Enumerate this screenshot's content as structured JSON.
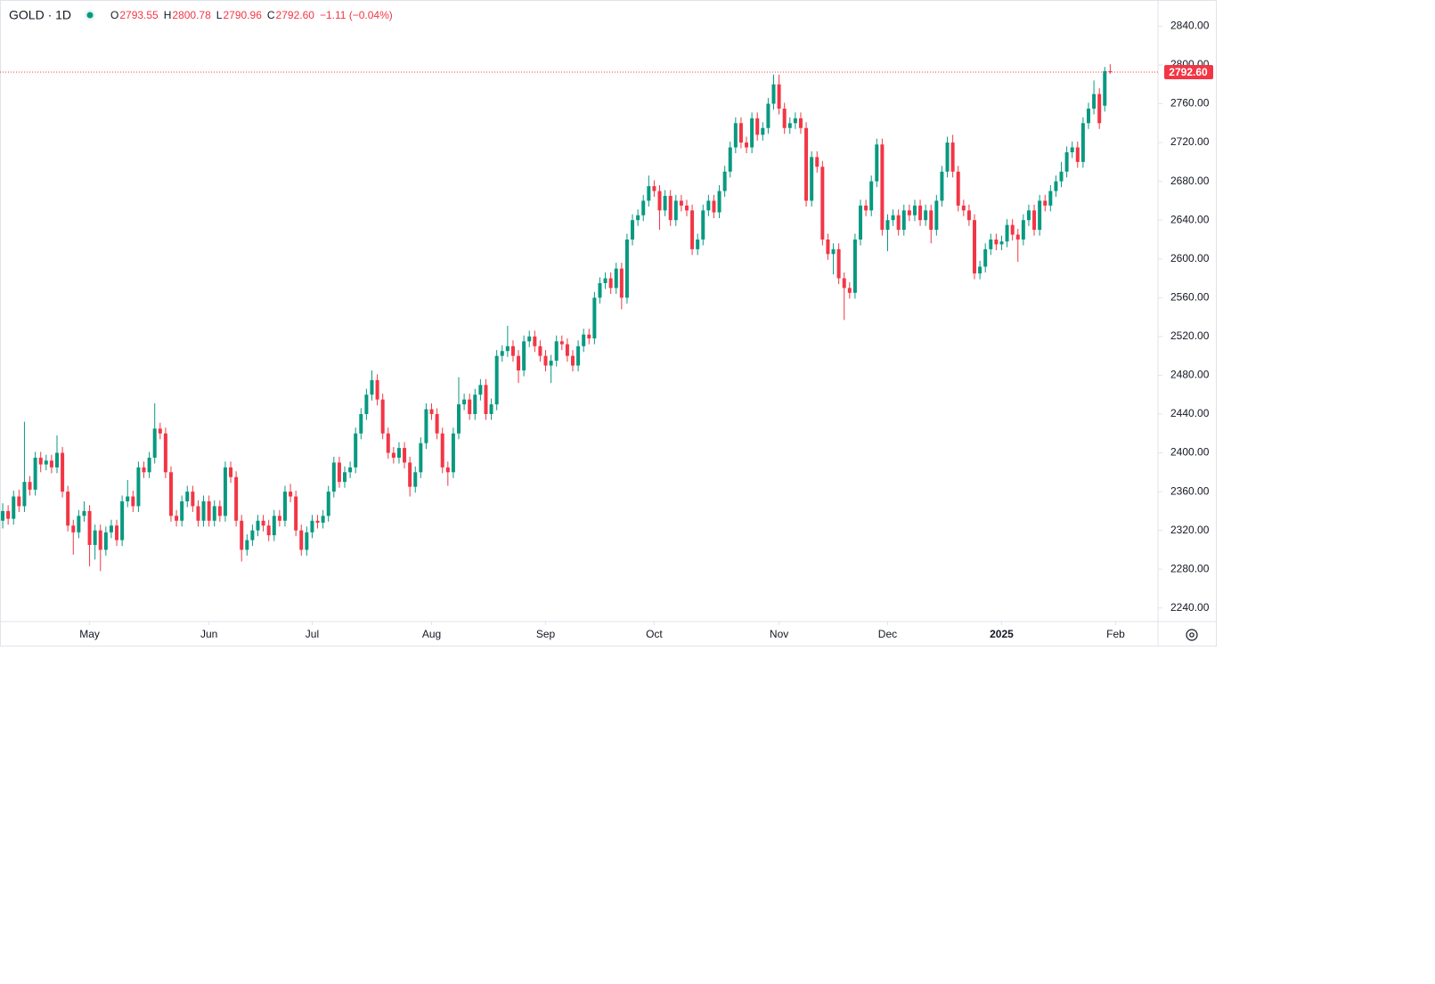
{
  "chart_data": {
    "type": "candlestick",
    "header": {
      "symbol": "GOLD · 1D",
      "open_key": "O",
      "open": "2793.55",
      "high_key": "H",
      "high": "2800.78",
      "low_key": "L",
      "low": "2790.96",
      "close_key": "C",
      "close": "2792.60",
      "change": "−1.11 (−0.04%)"
    },
    "up_color": "#089981",
    "down_color": "#f23645",
    "last_price": {
      "value": 2792.6,
      "label": "2792.60"
    },
    "ylim": [
      2226,
      2867
    ],
    "yticks": [
      {
        "value": 2240,
        "label": "2240.00"
      },
      {
        "value": 2280,
        "label": "2280.00"
      },
      {
        "value": 2320,
        "label": "2320.00"
      },
      {
        "value": 2360,
        "label": "2360.00"
      },
      {
        "value": 2400,
        "label": "2400.00"
      },
      {
        "value": 2440,
        "label": "2440.00"
      },
      {
        "value": 2480,
        "label": "2480.00"
      },
      {
        "value": 2520,
        "label": "2520.00"
      },
      {
        "value": 2560,
        "label": "2560.00"
      },
      {
        "value": 2600,
        "label": "2600.00"
      },
      {
        "value": 2640,
        "label": "2640.00"
      },
      {
        "value": 2680,
        "label": "2680.00"
      },
      {
        "value": 2720,
        "label": "2720.00"
      },
      {
        "value": 2760,
        "label": "2760.00"
      },
      {
        "value": 2800,
        "label": "2800.00"
      },
      {
        "value": 2840,
        "label": "2840.00"
      }
    ],
    "xlim": [
      -0.5,
      212.8
    ],
    "xticks": [
      {
        "value": 16,
        "label": "May"
      },
      {
        "value": 38,
        "label": "Jun"
      },
      {
        "value": 57,
        "label": "Jul"
      },
      {
        "value": 79,
        "label": "Aug"
      },
      {
        "value": 100,
        "label": "Sep"
      },
      {
        "value": 120,
        "label": "Oct"
      },
      {
        "value": 143,
        "label": "Nov"
      },
      {
        "value": 163,
        "label": "Dec"
      },
      {
        "value": 184,
        "label": "2025"
      },
      {
        "value": 205,
        "label": "Feb"
      }
    ],
    "ohlc": [
      [
        2330,
        2348,
        2322,
        2340
      ],
      [
        2340,
        2346,
        2326,
        2332
      ],
      [
        2332,
        2361,
        2326,
        2355
      ],
      [
        2355,
        2362,
        2339,
        2345
      ],
      [
        2345,
        2432,
        2339,
        2370
      ],
      [
        2370,
        2376,
        2356,
        2362
      ],
      [
        2362,
        2401,
        2356,
        2395
      ],
      [
        2395,
        2401,
        2380,
        2388
      ],
      [
        2388,
        2398,
        2382,
        2392
      ],
      [
        2392,
        2398,
        2379,
        2385
      ],
      [
        2385,
        2418,
        2379,
        2400
      ],
      [
        2400,
        2406,
        2354,
        2360
      ],
      [
        2360,
        2366,
        2319,
        2325
      ],
      [
        2325,
        2331,
        2295,
        2318
      ],
      [
        2318,
        2341,
        2312,
        2335
      ],
      [
        2335,
        2350,
        2329,
        2340
      ],
      [
        2340,
        2346,
        2283,
        2305
      ],
      [
        2305,
        2326,
        2290,
        2320
      ],
      [
        2320,
        2326,
        2278,
        2300
      ],
      [
        2300,
        2324,
        2294,
        2318
      ],
      [
        2318,
        2331,
        2312,
        2325
      ],
      [
        2325,
        2331,
        2304,
        2310
      ],
      [
        2310,
        2356,
        2304,
        2350
      ],
      [
        2350,
        2372,
        2344,
        2355
      ],
      [
        2355,
        2361,
        2339,
        2345
      ],
      [
        2345,
        2391,
        2339,
        2385
      ],
      [
        2385,
        2391,
        2374,
        2380
      ],
      [
        2380,
        2401,
        2374,
        2395
      ],
      [
        2395,
        2451,
        2389,
        2425
      ],
      [
        2425,
        2431,
        2414,
        2420
      ],
      [
        2420,
        2426,
        2374,
        2380
      ],
      [
        2380,
        2386,
        2329,
        2335
      ],
      [
        2335,
        2341,
        2324,
        2330
      ],
      [
        2330,
        2356,
        2324,
        2350
      ],
      [
        2350,
        2366,
        2344,
        2360
      ],
      [
        2360,
        2366,
        2339,
        2345
      ],
      [
        2345,
        2351,
        2324,
        2330
      ],
      [
        2330,
        2356,
        2324,
        2350
      ],
      [
        2350,
        2356,
        2324,
        2330
      ],
      [
        2330,
        2351,
        2324,
        2345
      ],
      [
        2345,
        2351,
        2329,
        2335
      ],
      [
        2335,
        2391,
        2329,
        2385
      ],
      [
        2385,
        2391,
        2369,
        2375
      ],
      [
        2375,
        2381,
        2324,
        2330
      ],
      [
        2330,
        2336,
        2288,
        2300
      ],
      [
        2300,
        2316,
        2294,
        2310
      ],
      [
        2310,
        2326,
        2304,
        2320
      ],
      [
        2320,
        2336,
        2314,
        2330
      ],
      [
        2330,
        2336,
        2319,
        2325
      ],
      [
        2325,
        2331,
        2309,
        2315
      ],
      [
        2315,
        2341,
        2309,
        2335
      ],
      [
        2335,
        2341,
        2324,
        2330
      ],
      [
        2330,
        2366,
        2324,
        2360
      ],
      [
        2360,
        2368,
        2349,
        2355
      ],
      [
        2355,
        2361,
        2314,
        2320
      ],
      [
        2320,
        2326,
        2294,
        2300
      ],
      [
        2300,
        2324,
        2294,
        2318
      ],
      [
        2318,
        2336,
        2312,
        2330
      ],
      [
        2330,
        2336,
        2322,
        2328
      ],
      [
        2328,
        2341,
        2322,
        2335
      ],
      [
        2335,
        2366,
        2329,
        2360
      ],
      [
        2360,
        2396,
        2354,
        2390
      ],
      [
        2390,
        2396,
        2364,
        2370
      ],
      [
        2370,
        2386,
        2364,
        2380
      ],
      [
        2380,
        2391,
        2374,
        2385
      ],
      [
        2385,
        2426,
        2379,
        2420
      ],
      [
        2420,
        2446,
        2414,
        2440
      ],
      [
        2440,
        2466,
        2434,
        2460
      ],
      [
        2460,
        2485,
        2454,
        2475
      ],
      [
        2475,
        2481,
        2449,
        2455
      ],
      [
        2455,
        2461,
        2414,
        2420
      ],
      [
        2420,
        2426,
        2394,
        2400
      ],
      [
        2400,
        2406,
        2389,
        2395
      ],
      [
        2395,
        2411,
        2389,
        2405
      ],
      [
        2405,
        2411,
        2384,
        2390
      ],
      [
        2390,
        2396,
        2355,
        2365
      ],
      [
        2365,
        2386,
        2359,
        2380
      ],
      [
        2380,
        2416,
        2374,
        2410
      ],
      [
        2410,
        2451,
        2404,
        2445
      ],
      [
        2445,
        2451,
        2434,
        2440
      ],
      [
        2440,
        2446,
        2414,
        2420
      ],
      [
        2420,
        2426,
        2379,
        2385
      ],
      [
        2385,
        2391,
        2366,
        2380
      ],
      [
        2380,
        2426,
        2374,
        2420
      ],
      [
        2420,
        2478,
        2414,
        2450
      ],
      [
        2450,
        2461,
        2444,
        2455
      ],
      [
        2455,
        2461,
        2434,
        2440
      ],
      [
        2440,
        2466,
        2434,
        2460
      ],
      [
        2460,
        2476,
        2454,
        2470
      ],
      [
        2470,
        2476,
        2434,
        2440
      ],
      [
        2440,
        2456,
        2434,
        2450
      ],
      [
        2450,
        2506,
        2444,
        2500
      ],
      [
        2500,
        2511,
        2494,
        2505
      ],
      [
        2505,
        2531,
        2499,
        2510
      ],
      [
        2510,
        2516,
        2494,
        2500
      ],
      [
        2500,
        2506,
        2472,
        2485
      ],
      [
        2485,
        2521,
        2479,
        2515
      ],
      [
        2515,
        2526,
        2509,
        2520
      ],
      [
        2520,
        2526,
        2504,
        2510
      ],
      [
        2510,
        2516,
        2494,
        2500
      ],
      [
        2500,
        2506,
        2484,
        2490
      ],
      [
        2490,
        2501,
        2472,
        2495
      ],
      [
        2495,
        2521,
        2489,
        2515
      ],
      [
        2515,
        2521,
        2506,
        2512
      ],
      [
        2512,
        2518,
        2494,
        2500
      ],
      [
        2500,
        2506,
        2484,
        2490
      ],
      [
        2490,
        2516,
        2484,
        2510
      ],
      [
        2510,
        2528,
        2504,
        2522
      ],
      [
        2522,
        2528,
        2512,
        2518
      ],
      [
        2518,
        2566,
        2512,
        2560
      ],
      [
        2560,
        2581,
        2554,
        2575
      ],
      [
        2575,
        2586,
        2569,
        2580
      ],
      [
        2580,
        2586,
        2564,
        2570
      ],
      [
        2570,
        2596,
        2564,
        2590
      ],
      [
        2590,
        2596,
        2548,
        2560
      ],
      [
        2560,
        2626,
        2554,
        2620
      ],
      [
        2620,
        2646,
        2614,
        2640
      ],
      [
        2640,
        2651,
        2634,
        2645
      ],
      [
        2645,
        2666,
        2639,
        2660
      ],
      [
        2660,
        2686,
        2654,
        2675
      ],
      [
        2675,
        2681,
        2664,
        2670
      ],
      [
        2670,
        2676,
        2630,
        2650
      ],
      [
        2650,
        2671,
        2644,
        2665
      ],
      [
        2665,
        2671,
        2634,
        2640
      ],
      [
        2640,
        2666,
        2634,
        2660
      ],
      [
        2660,
        2666,
        2649,
        2655
      ],
      [
        2655,
        2661,
        2644,
        2650
      ],
      [
        2650,
        2656,
        2604,
        2610
      ],
      [
        2610,
        2626,
        2604,
        2620
      ],
      [
        2620,
        2656,
        2614,
        2650
      ],
      [
        2650,
        2666,
        2644,
        2660
      ],
      [
        2660,
        2666,
        2642,
        2648
      ],
      [
        2648,
        2676,
        2642,
        2670
      ],
      [
        2670,
        2696,
        2664,
        2690
      ],
      [
        2690,
        2721,
        2684,
        2715
      ],
      [
        2715,
        2746,
        2709,
        2740
      ],
      [
        2740,
        2746,
        2714,
        2720
      ],
      [
        2720,
        2726,
        2709,
        2715
      ],
      [
        2715,
        2751,
        2709,
        2745
      ],
      [
        2745,
        2751,
        2722,
        2728
      ],
      [
        2728,
        2741,
        2722,
        2735
      ],
      [
        2735,
        2766,
        2729,
        2760
      ],
      [
        2760,
        2790,
        2754,
        2780
      ],
      [
        2780,
        2790,
        2749,
        2755
      ],
      [
        2755,
        2761,
        2729,
        2735
      ],
      [
        2735,
        2746,
        2729,
        2740
      ],
      [
        2740,
        2751,
        2734,
        2745
      ],
      [
        2745,
        2751,
        2729,
        2735
      ],
      [
        2735,
        2741,
        2654,
        2660
      ],
      [
        2660,
        2711,
        2654,
        2705
      ],
      [
        2705,
        2711,
        2689,
        2695
      ],
      [
        2695,
        2701,
        2614,
        2620
      ],
      [
        2620,
        2626,
        2599,
        2605
      ],
      [
        2605,
        2616,
        2584,
        2610
      ],
      [
        2610,
        2616,
        2574,
        2580
      ],
      [
        2580,
        2586,
        2537,
        2570
      ],
      [
        2570,
        2576,
        2559,
        2565
      ],
      [
        2565,
        2626,
        2559,
        2620
      ],
      [
        2620,
        2661,
        2614,
        2655
      ],
      [
        2655,
        2661,
        2644,
        2650
      ],
      [
        2650,
        2686,
        2644,
        2680
      ],
      [
        2680,
        2724,
        2674,
        2718
      ],
      [
        2718,
        2724,
        2624,
        2630
      ],
      [
        2630,
        2646,
        2608,
        2640
      ],
      [
        2640,
        2651,
        2634,
        2645
      ],
      [
        2645,
        2651,
        2624,
        2630
      ],
      [
        2630,
        2656,
        2624,
        2650
      ],
      [
        2650,
        2656,
        2639,
        2645
      ],
      [
        2645,
        2661,
        2639,
        2655
      ],
      [
        2655,
        2661,
        2634,
        2640
      ],
      [
        2640,
        2656,
        2634,
        2650
      ],
      [
        2650,
        2656,
        2616,
        2630
      ],
      [
        2630,
        2666,
        2624,
        2660
      ],
      [
        2660,
        2696,
        2654,
        2690
      ],
      [
        2690,
        2726,
        2684,
        2720
      ],
      [
        2720,
        2728,
        2684,
        2690
      ],
      [
        2690,
        2696,
        2649,
        2655
      ],
      [
        2655,
        2661,
        2644,
        2650
      ],
      [
        2650,
        2656,
        2634,
        2640
      ],
      [
        2640,
        2646,
        2579,
        2585
      ],
      [
        2585,
        2598,
        2579,
        2592
      ],
      [
        2592,
        2616,
        2586,
        2610
      ],
      [
        2610,
        2626,
        2604,
        2620
      ],
      [
        2620,
        2626,
        2609,
        2615
      ],
      [
        2615,
        2624,
        2609,
        2618
      ],
      [
        2618,
        2641,
        2612,
        2635
      ],
      [
        2635,
        2641,
        2619,
        2625
      ],
      [
        2625,
        2631,
        2597,
        2620
      ],
      [
        2620,
        2646,
        2614,
        2640
      ],
      [
        2640,
        2656,
        2634,
        2650
      ],
      [
        2650,
        2656,
        2624,
        2630
      ],
      [
        2630,
        2666,
        2624,
        2660
      ],
      [
        2660,
        2666,
        2649,
        2655
      ],
      [
        2655,
        2676,
        2649,
        2670
      ],
      [
        2670,
        2686,
        2664,
        2680
      ],
      [
        2680,
        2700,
        2674,
        2690
      ],
      [
        2690,
        2716,
        2684,
        2710
      ],
      [
        2710,
        2721,
        2704,
        2715
      ],
      [
        2715,
        2721,
        2694,
        2700
      ],
      [
        2700,
        2746,
        2694,
        2740
      ],
      [
        2740,
        2761,
        2734,
        2755
      ],
      [
        2755,
        2784,
        2749,
        2770
      ],
      [
        2770,
        2776,
        2734,
        2740
      ],
      [
        2758,
        2798,
        2752,
        2793.71
      ],
      [
        2793.55,
        2800.78,
        2790.96,
        2792.6
      ]
    ]
  }
}
